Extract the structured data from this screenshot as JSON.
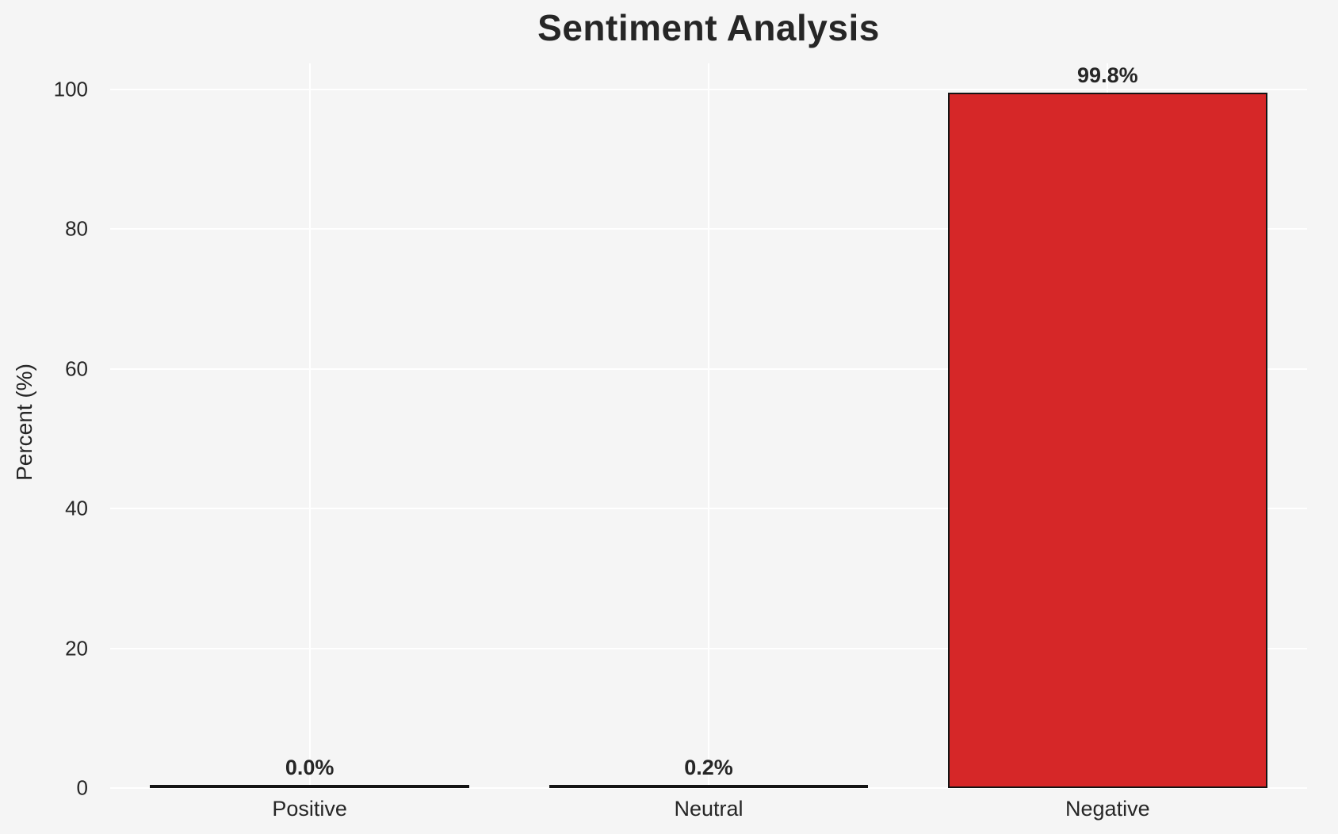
{
  "chart_data": {
    "type": "bar",
    "title": "Sentiment Analysis",
    "xlabel": "",
    "ylabel": "Percent (%)",
    "categories": [
      "Positive",
      "Neutral",
      "Negative"
    ],
    "values": [
      0.0,
      0.2,
      99.8
    ],
    "value_labels": [
      "0.0%",
      "0.2%",
      "99.8%"
    ],
    "yticks": [
      0,
      20,
      40,
      60,
      80,
      100
    ],
    "ytick_labels": [
      "0",
      "20",
      "40",
      "60",
      "80",
      "100"
    ],
    "ylim": [
      0,
      103.7
    ],
    "grid": "on",
    "legend": "none",
    "colors": {
      "bar_fill": "#d62728",
      "bar_edge": "#141414",
      "background": "#f5f5f5",
      "gridline": "#ffffff",
      "text": "#262626"
    }
  }
}
